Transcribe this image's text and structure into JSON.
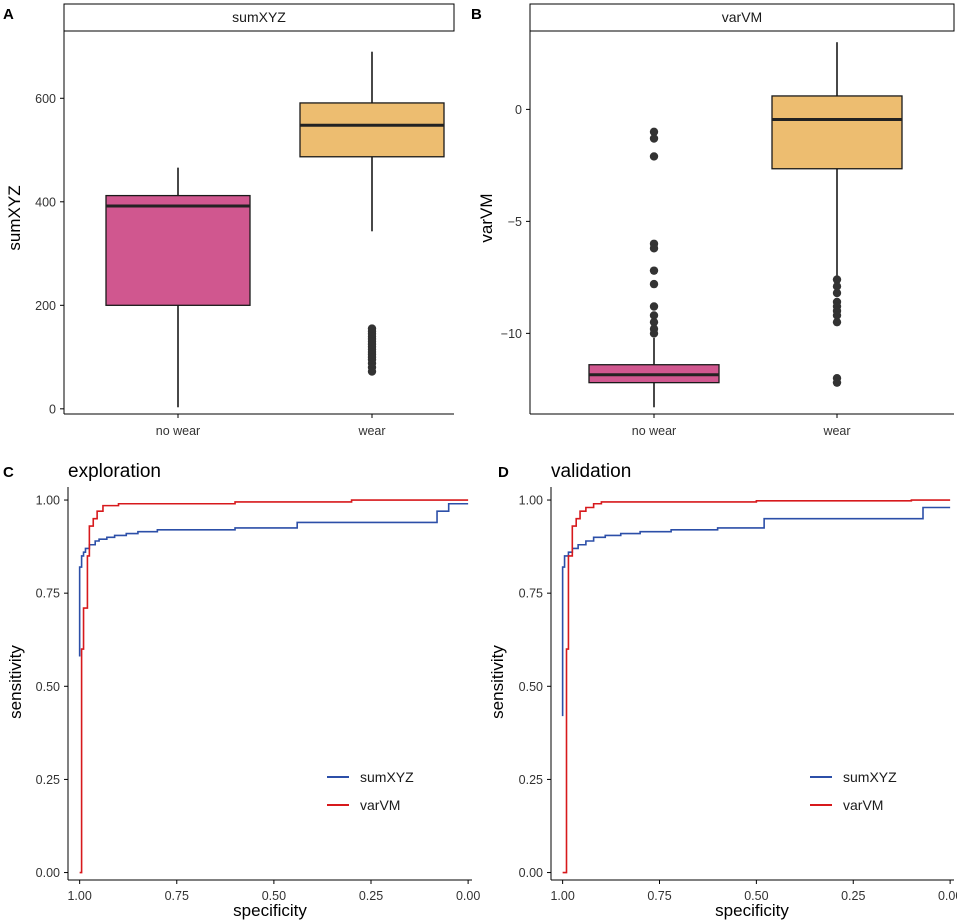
{
  "colors": {
    "no_wear_fill": "#D0578F",
    "wear_fill": "#EDBD70",
    "sumXYZ_line": "#2C4FA8",
    "varVM_line": "#D7191C",
    "median": "#222222",
    "outlier": "#333333"
  },
  "chart_data": [
    {
      "id": "A",
      "tag": "A",
      "type": "box",
      "strip": "sumXYZ",
      "ylabel": "sumXYZ",
      "xlabel": "",
      "ylim": [
        -10,
        730
      ],
      "yticks": [
        0,
        200,
        400,
        600
      ],
      "ytick_labels": [
        "0",
        "200",
        "400",
        "600"
      ],
      "categories": [
        "no wear",
        "wear"
      ],
      "boxes": [
        {
          "category": "no wear",
          "lower_whisker": 3,
          "q1": 200,
          "median": 392,
          "q3": 412,
          "upper_whisker": 466,
          "outliers": []
        },
        {
          "category": "wear",
          "lower_whisker": 343,
          "q1": 487,
          "median": 548,
          "q3": 591,
          "upper_whisker": 690,
          "outliers": [
            72,
            80,
            88,
            95,
            100,
            105,
            110,
            115,
            120,
            125,
            130,
            135,
            140,
            145,
            150,
            155
          ]
        }
      ]
    },
    {
      "id": "B",
      "tag": "B",
      "type": "box",
      "strip": "varVM",
      "ylabel": "varVM",
      "xlabel": "",
      "ylim": [
        -13.6,
        3.5
      ],
      "yticks": [
        0,
        -5,
        -10
      ],
      "ytick_labels": [
        "0",
        "−5",
        "−10"
      ],
      "categories": [
        "no wear",
        "wear"
      ],
      "boxes": [
        {
          "category": "no wear",
          "lower_whisker": -13.3,
          "q1": -12.2,
          "median": -11.85,
          "q3": -11.4,
          "upper_whisker": -10.2,
          "outliers": [
            -1.0,
            -1.3,
            -2.1,
            -6.0,
            -6.2,
            -7.2,
            -7.8,
            -8.8,
            -9.2,
            -9.5,
            -9.8,
            -10.0
          ]
        },
        {
          "category": "wear",
          "lower_whisker": -7.5,
          "q1": -2.65,
          "median": -0.45,
          "q3": 0.6,
          "upper_whisker": 3.0,
          "outliers": [
            -7.6,
            -7.9,
            -8.2,
            -8.6,
            -8.8,
            -9.0,
            -9.2,
            -9.5,
            -12.0,
            -12.2
          ]
        }
      ]
    },
    {
      "id": "C",
      "tag": "C",
      "type": "line",
      "title": "exploration",
      "xlabel": "specificity",
      "ylabel": "sensitivity",
      "xlim": [
        1.03,
        -0.01
      ],
      "ylim": [
        -0.02,
        1.035
      ],
      "xticks": [
        1.0,
        0.75,
        0.5,
        0.25,
        0.0
      ],
      "xtick_labels": [
        "1.00",
        "0.75",
        "0.50",
        "0.25",
        "0.00"
      ],
      "yticks": [
        0.0,
        0.25,
        0.5,
        0.75,
        1.0
      ],
      "ytick_labels": [
        "0.00",
        "0.25",
        "0.50",
        "0.75",
        "1.00"
      ],
      "legend_position": "bottom-right",
      "series": [
        {
          "name": "sumXYZ",
          "specificity": [
            1.0,
            1.0,
            0.995,
            0.995,
            0.99,
            0.99,
            0.985,
            0.985,
            0.975,
            0.975,
            0.96,
            0.96,
            0.95,
            0.95,
            0.93,
            0.93,
            0.91,
            0.91,
            0.88,
            0.88,
            0.85,
            0.85,
            0.8,
            0.8,
            0.6,
            0.6,
            0.44,
            0.44,
            0.08,
            0.08,
            0.05,
            0.05,
            0.0
          ],
          "sensitivity": [
            0.58,
            0.82,
            0.82,
            0.85,
            0.85,
            0.86,
            0.86,
            0.87,
            0.87,
            0.88,
            0.88,
            0.89,
            0.89,
            0.895,
            0.895,
            0.9,
            0.9,
            0.905,
            0.905,
            0.91,
            0.91,
            0.915,
            0.915,
            0.92,
            0.92,
            0.925,
            0.925,
            0.94,
            0.94,
            0.97,
            0.97,
            0.99,
            0.99
          ]
        },
        {
          "name": "varVM",
          "specificity": [
            1.0,
            0.995,
            0.995,
            0.99,
            0.99,
            0.98,
            0.98,
            0.975,
            0.975,
            0.965,
            0.965,
            0.955,
            0.955,
            0.94,
            0.94,
            0.9,
            0.9,
            0.6,
            0.6,
            0.3,
            0.3,
            0.0
          ],
          "sensitivity": [
            0.0,
            0.0,
            0.6,
            0.6,
            0.71,
            0.71,
            0.85,
            0.85,
            0.93,
            0.93,
            0.95,
            0.95,
            0.97,
            0.97,
            0.985,
            0.985,
            0.99,
            0.99,
            0.995,
            0.995,
            1.0,
            1.0
          ]
        }
      ]
    },
    {
      "id": "D",
      "tag": "D",
      "type": "line",
      "title": "validation",
      "xlabel": "specificity",
      "ylabel": "sensitivity",
      "xlim": [
        1.03,
        -0.01
      ],
      "ylim": [
        -0.02,
        1.035
      ],
      "xticks": [
        1.0,
        0.75,
        0.5,
        0.25,
        0.0
      ],
      "xtick_labels": [
        "1.00",
        "0.75",
        "0.50",
        "0.25",
        "0.00"
      ],
      "yticks": [
        0.0,
        0.25,
        0.5,
        0.75,
        1.0
      ],
      "ytick_labels": [
        "0.00",
        "0.25",
        "0.50",
        "0.75",
        "1.00"
      ],
      "legend_position": "bottom-right",
      "series": [
        {
          "name": "sumXYZ",
          "specificity": [
            1.0,
            1.0,
            0.995,
            0.995,
            0.985,
            0.985,
            0.975,
            0.975,
            0.96,
            0.96,
            0.94,
            0.94,
            0.92,
            0.92,
            0.89,
            0.89,
            0.85,
            0.85,
            0.8,
            0.8,
            0.72,
            0.72,
            0.6,
            0.6,
            0.48,
            0.48,
            0.07,
            0.07,
            0.0
          ],
          "sensitivity": [
            0.42,
            0.82,
            0.82,
            0.85,
            0.85,
            0.86,
            0.86,
            0.87,
            0.87,
            0.88,
            0.88,
            0.89,
            0.89,
            0.9,
            0.9,
            0.905,
            0.905,
            0.91,
            0.91,
            0.915,
            0.915,
            0.92,
            0.92,
            0.925,
            0.925,
            0.95,
            0.95,
            0.98,
            0.98
          ]
        },
        {
          "name": "varVM",
          "specificity": [
            1.0,
            0.99,
            0.99,
            0.985,
            0.985,
            0.975,
            0.975,
            0.965,
            0.965,
            0.955,
            0.955,
            0.94,
            0.94,
            0.92,
            0.92,
            0.9,
            0.9,
            0.5,
            0.5,
            0.1,
            0.1,
            0.0
          ],
          "sensitivity": [
            0.0,
            0.0,
            0.6,
            0.6,
            0.85,
            0.85,
            0.93,
            0.93,
            0.95,
            0.95,
            0.97,
            0.97,
            0.98,
            0.98,
            0.99,
            0.99,
            0.995,
            0.995,
            0.998,
            0.998,
            1.0,
            1.0
          ]
        }
      ]
    }
  ]
}
